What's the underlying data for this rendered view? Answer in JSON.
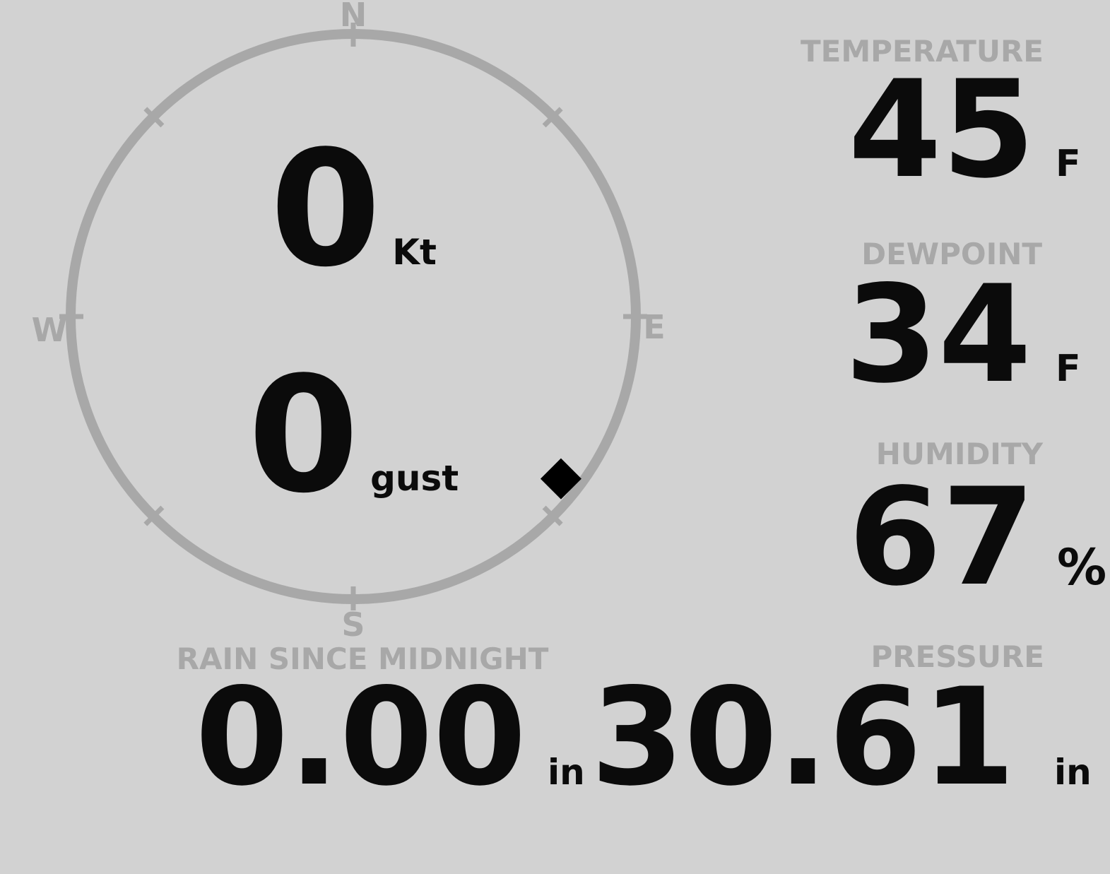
{
  "compass": {
    "cardinal": {
      "north": "N",
      "east": "E",
      "south": "S",
      "west": "W"
    },
    "wind_speed": {
      "value": "0",
      "unit": "Kt"
    },
    "wind_gust": {
      "value": "0",
      "unit": "gust"
    },
    "marker": {
      "shape": "diamond",
      "bearing_deg": 128,
      "color": "#000000"
    }
  },
  "metrics": {
    "temperature": {
      "label": "TEMPERATURE",
      "value": "45",
      "unit": "F"
    },
    "dewpoint": {
      "label": "DEWPOINT",
      "value": "34",
      "unit": "F"
    },
    "humidity": {
      "label": "HUMIDITY",
      "value": "67",
      "unit": "%"
    },
    "rain_since_midnight": {
      "label": "RAIN SINCE MIDNIGHT",
      "value": "0.00",
      "unit": "in"
    },
    "pressure": {
      "label": "PRESSURE",
      "value": "30.61",
      "unit": "in"
    }
  },
  "colors": {
    "background": "#d2d2d2",
    "dial_gray": "#a8a8a8",
    "label_gray": "#a8a8a8",
    "value_black": "#0b0b0b",
    "marker_black": "#000000"
  }
}
